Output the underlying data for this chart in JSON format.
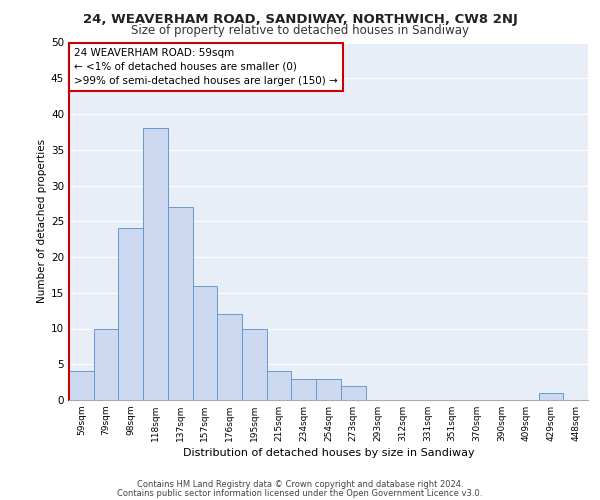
{
  "title1": "24, WEAVERHAM ROAD, SANDIWAY, NORTHWICH, CW8 2NJ",
  "title2": "Size of property relative to detached houses in Sandiway",
  "xlabel": "Distribution of detached houses by size in Sandiway",
  "ylabel": "Number of detached properties",
  "categories": [
    "59sqm",
    "79sqm",
    "98sqm",
    "118sqm",
    "137sqm",
    "157sqm",
    "176sqm",
    "195sqm",
    "215sqm",
    "234sqm",
    "254sqm",
    "273sqm",
    "293sqm",
    "312sqm",
    "331sqm",
    "351sqm",
    "370sqm",
    "390sqm",
    "409sqm",
    "429sqm",
    "448sqm"
  ],
  "values": [
    4,
    10,
    24,
    38,
    27,
    16,
    12,
    10,
    4,
    3,
    3,
    2,
    0,
    0,
    0,
    0,
    0,
    0,
    0,
    1,
    0
  ],
  "bar_color": "#ccd9f0",
  "bar_edge_color": "#6699cc",
  "annotation_title": "24 WEAVERHAM ROAD: 59sqm",
  "annotation_line1": "← <1% of detached houses are smaller (0)",
  "annotation_line2": ">99% of semi-detached houses are larger (150) →",
  "annotation_box_color": "#ffffff",
  "annotation_border_color": "#cc0000",
  "left_spine_color": "#cc0000",
  "ylim": [
    0,
    50
  ],
  "yticks": [
    0,
    5,
    10,
    15,
    20,
    25,
    30,
    35,
    40,
    45,
    50
  ],
  "bg_color": "#e8eef8",
  "grid_color": "#ffffff",
  "footer1": "Contains HM Land Registry data © Crown copyright and database right 2024.",
  "footer2": "Contains public sector information licensed under the Open Government Licence v3.0."
}
